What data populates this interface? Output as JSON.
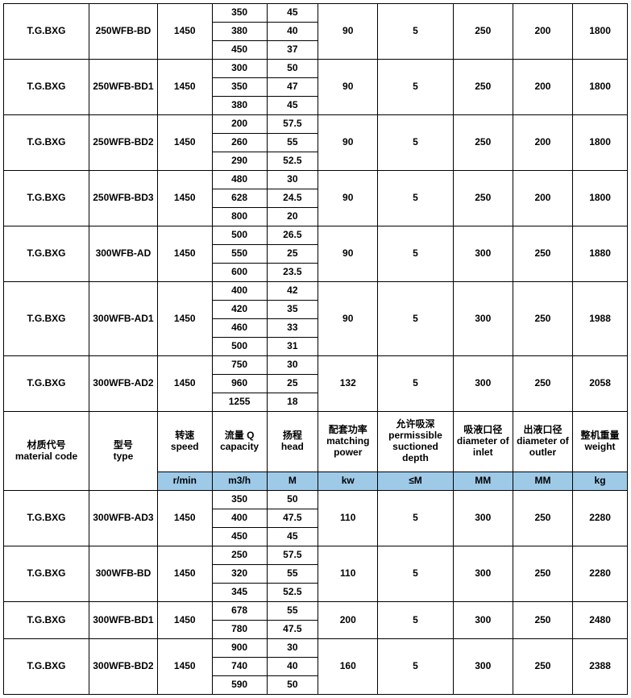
{
  "colors": {
    "unit_bg": "#9ecae8",
    "border": "#000000",
    "text": "#000000",
    "bg": "#ffffff"
  },
  "header": {
    "material_cn": "材质代号",
    "material_en": "material code",
    "type_cn": "型号",
    "type_en": "type",
    "speed_cn": "转速",
    "speed_en": "speed",
    "capacity_cn": "流量 Q",
    "capacity_en": "capacity",
    "head_cn": "扬程",
    "head_en": "head",
    "power_cn": "配套功率",
    "power_en": "matching power",
    "depth_cn": "允许吸深",
    "depth_en": "permissible suctioned depth",
    "inlet_cn": "吸液口径",
    "inlet_en": "diameter of inlet",
    "outlet_cn": "出液口径",
    "outlet_en": "diameter of outler",
    "weight_cn": "整机重量",
    "weight_en": "weight"
  },
  "units": {
    "speed": "r/min",
    "capacity": "m3/h",
    "head": "M",
    "power": "kw",
    "depth": "≤M",
    "inlet": "MM",
    "outlet": "MM",
    "weight": "kg"
  },
  "groups": [
    {
      "material": "T.G.BXG",
      "type": "250WFB-BD",
      "speed": "1450",
      "power": "90",
      "depth": "5",
      "inlet": "250",
      "outlet": "200",
      "weight": "1800",
      "rows": [
        {
          "q": "350",
          "h": "45"
        },
        {
          "q": "380",
          "h": "40"
        },
        {
          "q": "450",
          "h": "37"
        }
      ]
    },
    {
      "material": "T.G.BXG",
      "type": "250WFB-BD1",
      "speed": "1450",
      "power": "90",
      "depth": "5",
      "inlet": "250",
      "outlet": "200",
      "weight": "1800",
      "rows": [
        {
          "q": "300",
          "h": "50"
        },
        {
          "q": "350",
          "h": "47"
        },
        {
          "q": "380",
          "h": "45"
        }
      ]
    },
    {
      "material": "T.G.BXG",
      "type": "250WFB-BD2",
      "speed": "1450",
      "power": "90",
      "depth": "5",
      "inlet": "250",
      "outlet": "200",
      "weight": "1800",
      "rows": [
        {
          "q": "200",
          "h": "57.5"
        },
        {
          "q": "260",
          "h": "55"
        },
        {
          "q": "290",
          "h": "52.5"
        }
      ]
    },
    {
      "material": "T.G.BXG",
      "type": "250WFB-BD3",
      "speed": "1450",
      "power": "90",
      "depth": "5",
      "inlet": "250",
      "outlet": "200",
      "weight": "1800",
      "rows": [
        {
          "q": "480",
          "h": "30"
        },
        {
          "q": "628",
          "h": "24.5"
        },
        {
          "q": "800",
          "h": "20"
        }
      ]
    },
    {
      "material": "T.G.BXG",
      "type": "300WFB-AD",
      "speed": "1450",
      "power": "90",
      "depth": "5",
      "inlet": "300",
      "outlet": "250",
      "weight": "1880",
      "rows": [
        {
          "q": "500",
          "h": "26.5"
        },
        {
          "q": "550",
          "h": "25"
        },
        {
          "q": "600",
          "h": "23.5"
        }
      ]
    },
    {
      "material": "T.G.BXG",
      "type": "300WFB-AD1",
      "speed": "1450",
      "power": "90",
      "depth": "5",
      "inlet": "300",
      "outlet": "250",
      "weight": "1988",
      "rows": [
        {
          "q": "400",
          "h": "42"
        },
        {
          "q": "420",
          "h": "35"
        },
        {
          "q": "460",
          "h": "33"
        },
        {
          "q": "500",
          "h": "31"
        }
      ]
    },
    {
      "material": "T.G.BXG",
      "type": "300WFB-AD2",
      "speed": "1450",
      "power": "132",
      "depth": "5",
      "inlet": "300",
      "outlet": "250",
      "weight": "2058",
      "rows": [
        {
          "q": "750",
          "h": "30"
        },
        {
          "q": "960",
          "h": "25"
        },
        {
          "q": "1255",
          "h": "18"
        }
      ]
    }
  ],
  "groups2": [
    {
      "material": "T.G.BXG",
      "type": "300WFB-AD3",
      "speed": "1450",
      "power": "110",
      "depth": "5",
      "inlet": "300",
      "outlet": "250",
      "weight": "2280",
      "rows": [
        {
          "q": "350",
          "h": "50"
        },
        {
          "q": "400",
          "h": "47.5"
        },
        {
          "q": "450",
          "h": "45"
        }
      ]
    },
    {
      "material": "T.G.BXG",
      "type": "300WFB-BD",
      "speed": "1450",
      "power": "110",
      "depth": "5",
      "inlet": "300",
      "outlet": "250",
      "weight": "2280",
      "rows": [
        {
          "q": "250",
          "h": "57.5"
        },
        {
          "q": "320",
          "h": "55"
        },
        {
          "q": "345",
          "h": "52.5"
        }
      ]
    },
    {
      "material": "T.G.BXG",
      "type": "300WFB-BD1",
      "speed": "1450",
      "power": "200",
      "depth": "5",
      "inlet": "300",
      "outlet": "250",
      "weight": "2480",
      "rows": [
        {
          "q": "678",
          "h": "55"
        },
        {
          "q": "780",
          "h": "47.5"
        }
      ]
    },
    {
      "material": "T.G.BXG",
      "type": "300WFB-BD2",
      "speed": "1450",
      "power": "160",
      "depth": "5",
      "inlet": "300",
      "outlet": "250",
      "weight": "2388",
      "rows": [
        {
          "q": "900",
          "h": "30"
        },
        {
          "q": "740",
          "h": "40"
        },
        {
          "q": "590",
          "h": "50"
        }
      ]
    }
  ]
}
